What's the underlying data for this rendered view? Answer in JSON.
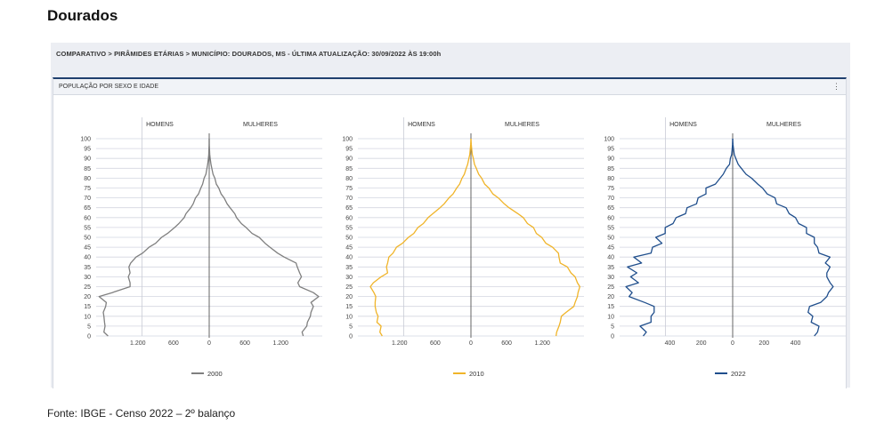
{
  "page": {
    "title": "Dourados",
    "breadcrumb": "COMPARATIVO > PIRÂMIDES ETÁRIAS > MUNICÍPIO: DOURADOS, MS - ÚLTIMA ATUALIZAÇÃO: 30/09/2022 ÀS 19:00h",
    "panel_title": "POPULAÇÃO POR SEXO E IDADE",
    "panel_menu_icon": "⋮",
    "source": "Fonte: IBGE - Censo 2022 – 2º balanço"
  },
  "chart_data": [
    {
      "type": "line",
      "series": [
        {
          "name": "2000",
          "color": "#7f7f7f"
        }
      ],
      "left_label": "HOMENS",
      "right_label": "MULHERES",
      "ages": [
        0,
        2,
        5,
        7,
        10,
        12,
        15,
        17,
        20,
        22,
        25,
        27,
        30,
        32,
        35,
        37,
        40,
        42,
        45,
        47,
        50,
        52,
        55,
        57,
        60,
        62,
        65,
        67,
        70,
        72,
        75,
        77,
        80,
        82,
        85,
        87,
        90,
        92,
        95,
        97,
        100
      ],
      "men": [
        1700,
        1770,
        1750,
        1760,
        1770,
        1780,
        1740,
        1730,
        1850,
        1630,
        1330,
        1330,
        1360,
        1330,
        1350,
        1320,
        1230,
        1120,
        1010,
        900,
        800,
        700,
        580,
        510,
        420,
        390,
        310,
        270,
        230,
        180,
        140,
        110,
        85,
        55,
        38,
        25,
        14,
        8,
        4,
        2,
        0
      ],
      "women": [
        1580,
        1560,
        1640,
        1650,
        1700,
        1710,
        1750,
        1710,
        1840,
        1750,
        1520,
        1490,
        1550,
        1520,
        1480,
        1460,
        1260,
        1150,
        1020,
        940,
        840,
        720,
        620,
        540,
        460,
        430,
        350,
        300,
        250,
        200,
        160,
        120,
        95,
        65,
        44,
        30,
        16,
        9,
        5,
        2,
        0
      ],
      "y_ticks": [
        "0",
        "5",
        "10",
        "15",
        "20",
        "25",
        "30",
        "35",
        "40",
        "45",
        "50",
        "55",
        "60",
        "65",
        "70",
        "75",
        "80",
        "85",
        "90",
        "95",
        "100"
      ],
      "x_ticks_left": [
        "1.200",
        "600"
      ],
      "x_tick_center": "0",
      "x_ticks_right": [
        "600",
        "1.200"
      ],
      "x_tick_values": [
        -1200,
        -600,
        0,
        600,
        1200
      ],
      "xlim": [
        -1900,
        1900
      ],
      "ylim": [
        0,
        100
      ]
    },
    {
      "type": "line",
      "series": [
        {
          "name": "2010",
          "color": "#f0b429"
        }
      ],
      "left_label": "HOMENS",
      "right_label": "MULHERES",
      "ages": [
        0,
        2,
        5,
        7,
        10,
        12,
        15,
        17,
        20,
        22,
        25,
        27,
        30,
        32,
        35,
        37,
        40,
        42,
        45,
        47,
        50,
        52,
        55,
        57,
        60,
        62,
        65,
        67,
        70,
        72,
        75,
        77,
        80,
        82,
        85,
        87,
        90,
        92,
        95,
        97,
        100
      ],
      "men": [
        1490,
        1530,
        1510,
        1580,
        1560,
        1590,
        1610,
        1610,
        1600,
        1630,
        1690,
        1640,
        1510,
        1400,
        1420,
        1400,
        1380,
        1310,
        1250,
        1150,
        1050,
        960,
        890,
        800,
        720,
        640,
        520,
        450,
        370,
        300,
        240,
        190,
        150,
        110,
        80,
        55,
        35,
        20,
        10,
        5,
        0
      ],
      "women": [
        1430,
        1440,
        1480,
        1500,
        1520,
        1600,
        1730,
        1750,
        1790,
        1800,
        1830,
        1790,
        1750,
        1680,
        1620,
        1500,
        1480,
        1470,
        1370,
        1260,
        1190,
        1100,
        1050,
        950,
        880,
        790,
        640,
        560,
        460,
        370,
        300,
        230,
        180,
        130,
        90,
        60,
        40,
        22,
        12,
        6,
        0
      ],
      "y_ticks": [
        "0",
        "5",
        "10",
        "15",
        "20",
        "25",
        "30",
        "35",
        "40",
        "45",
        "50",
        "55",
        "60",
        "65",
        "70",
        "75",
        "80",
        "85",
        "90",
        "95",
        "100"
      ],
      "x_ticks_left": [
        "1.200",
        "600"
      ],
      "x_tick_center": "0",
      "x_ticks_right": [
        "600",
        "1.200"
      ],
      "x_tick_values": [
        -1200,
        -600,
        0,
        600,
        1200
      ],
      "xlim": [
        -1900,
        1900
      ],
      "ylim": [
        0,
        100
      ]
    },
    {
      "type": "line",
      "series": [
        {
          "name": "2022",
          "color": "#1f4e8c"
        }
      ],
      "left_label": "HOMENS",
      "right_label": "MULHERES",
      "ages": [
        0,
        2,
        5,
        7,
        10,
        12,
        15,
        17,
        20,
        22,
        25,
        27,
        30,
        32,
        35,
        37,
        40,
        42,
        45,
        47,
        50,
        52,
        55,
        57,
        60,
        62,
        65,
        67,
        70,
        72,
        75,
        77,
        80,
        82,
        85,
        87,
        90,
        92,
        95,
        97,
        100
      ],
      "men": [
        570,
        550,
        590,
        520,
        520,
        500,
        500,
        560,
        660,
        640,
        680,
        600,
        650,
        610,
        670,
        580,
        630,
        520,
        510,
        450,
        490,
        430,
        430,
        380,
        360,
        300,
        290,
        230,
        220,
        170,
        170,
        110,
        80,
        60,
        40,
        20,
        15,
        6,
        3,
        1,
        0
      ],
      "women": [
        520,
        540,
        550,
        500,
        510,
        480,
        490,
        560,
        600,
        610,
        640,
        620,
        600,
        600,
        620,
        590,
        620,
        550,
        540,
        520,
        520,
        470,
        470,
        420,
        400,
        360,
        340,
        280,
        270,
        220,
        190,
        160,
        120,
        85,
        55,
        35,
        20,
        10,
        5,
        2,
        0
      ],
      "y_ticks": [
        "0",
        "5",
        "10",
        "15",
        "20",
        "25",
        "30",
        "35",
        "40",
        "45",
        "50",
        "55",
        "60",
        "65",
        "70",
        "75",
        "80",
        "85",
        "90",
        "95",
        "100"
      ],
      "x_ticks_left": [
        "400",
        "200"
      ],
      "x_tick_center": "0",
      "x_ticks_right": [
        "200",
        "400"
      ],
      "x_tick_values": [
        -400,
        -200,
        0,
        200,
        400
      ],
      "xlim": [
        -720,
        720
      ],
      "ylim": [
        0,
        100
      ]
    }
  ]
}
